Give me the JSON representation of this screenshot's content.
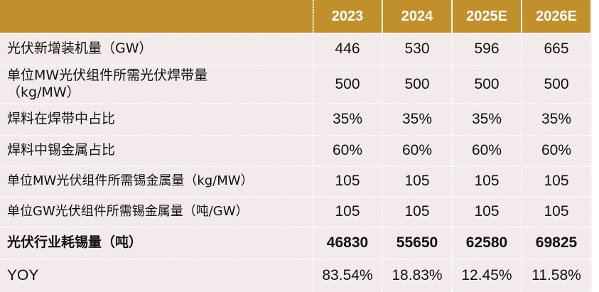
{
  "table": {
    "columns": [
      "2023",
      "2024",
      "2025E",
      "2026E"
    ],
    "rows": [
      {
        "label": "光伏新增装机量（GW）",
        "values": [
          "446",
          "530",
          "596",
          "665"
        ],
        "bold": false
      },
      {
        "label": "单位MW光伏组件所需光伏焊带量（kg/MW）",
        "values": [
          "500",
          "500",
          "500",
          "500"
        ],
        "bold": false
      },
      {
        "label": "焊料在焊带中占比",
        "values": [
          "35%",
          "35%",
          "35%",
          "35%"
        ],
        "bold": false
      },
      {
        "label": "焊料中锡金属占比",
        "values": [
          "60%",
          "60%",
          "60%",
          "60%"
        ],
        "bold": false
      },
      {
        "label": "单位MW光伏组件所需锡金属量（kg/MW）",
        "values": [
          "105",
          "105",
          "105",
          "105"
        ],
        "bold": false
      },
      {
        "label": "单位GW光伏组件所需锡金属量（吨/GW）",
        "values": [
          "105",
          "105",
          "105",
          "105"
        ],
        "bold": false
      },
      {
        "label": "光伏行业耗锡量（吨）",
        "values": [
          "46830",
          "55650",
          "62580",
          "69825"
        ],
        "bold": true
      },
      {
        "label": "YOY",
        "values": [
          "83.54%",
          "18.83%",
          "12.45%",
          "11.58%"
        ],
        "bold": false
      }
    ]
  },
  "colors": {
    "header_bg": "#c1902d",
    "body_bg": "#f3ebeb",
    "header_text": "#ffffff"
  }
}
